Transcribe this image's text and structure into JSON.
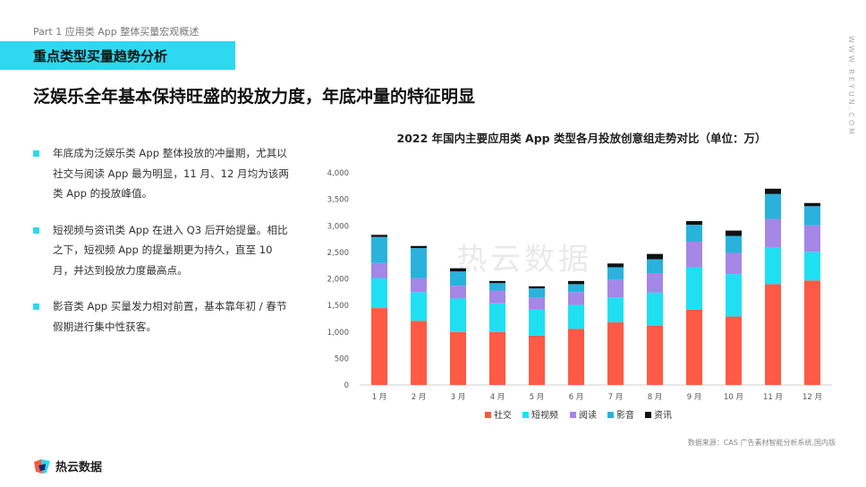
{
  "part_label": "Part 1 应用类 App 整体买量宏观概述",
  "section_title": "重点类型买量趋势分析",
  "side_url": "WWW.REYUN.COM",
  "headline": "泛娱乐全年基本保持旺盛的投放力度，年底冲量的特征明显",
  "bullets": [
    "年底成为泛娱乐类 App 整体投放的冲量期，尤其以社交与阅读 App 最为明显，11 月、12 月均为该两类 App 的投放峰值。",
    "短视频与资讯类 App 在进入 Q3 后开始提量。相比之下，短视频 App 的提量期更为持久，直至 10 月，并达到投放力度最高点。",
    "影音类 App 买量发力相对前置，基本靠年初 / 春节假期进行集中性获客。"
  ],
  "watermark": "热云数据",
  "logo_text": "热云数据",
  "source": "数据来源：CAS 广告素材智能分析系统,国内版",
  "colors": {
    "accent": "#2ed8f0",
    "social": "#ff5a45",
    "short_video": "#1fe0f2",
    "reading": "#a487e6",
    "video": "#2ab2dd",
    "news": "#111111"
  },
  "chart_data": {
    "type": "bar",
    "stacked": true,
    "title": "2022 年国内主要应用类 App 类型各月投放创意组走势对比（单位：万）",
    "categories": [
      "1 月",
      "2 月",
      "3 月",
      "4 月",
      "5 月",
      "6 月",
      "7 月",
      "8 月",
      "9 月",
      "10 月",
      "11 月",
      "12 月"
    ],
    "ylim": [
      0,
      4000
    ],
    "yticks": [
      "0",
      "500",
      "1,000",
      "1,500",
      "2,000",
      "2,500",
      "3,000",
      "3,500",
      "4,000"
    ],
    "legend_position": "bottom",
    "series": [
      {
        "name": "社交",
        "color": "#ff5a45",
        "values": [
          1450,
          1210,
          1000,
          1000,
          930,
          1060,
          1180,
          1120,
          1420,
          1290,
          1900,
          1970
        ]
      },
      {
        "name": "短视频",
        "color": "#1fe0f2",
        "values": [
          560,
          540,
          630,
          540,
          490,
          450,
          470,
          620,
          800,
          800,
          700,
          540
        ]
      },
      {
        "name": "阅读",
        "color": "#a487e6",
        "values": [
          290,
          260,
          240,
          240,
          220,
          240,
          340,
          370,
          480,
          400,
          530,
          500
        ]
      },
      {
        "name": "影音",
        "color": "#2ab2dd",
        "values": [
          490,
          570,
          270,
          140,
          180,
          150,
          230,
          260,
          320,
          320,
          470,
          360
        ]
      },
      {
        "name": "资讯",
        "color": "#111111",
        "values": [
          40,
          40,
          60,
          40,
          40,
          60,
          70,
          100,
          70,
          100,
          100,
          60
        ]
      }
    ]
  }
}
